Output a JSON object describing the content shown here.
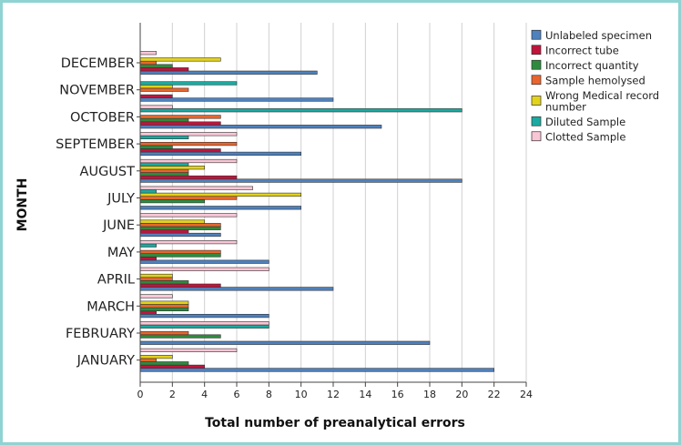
{
  "chart_data": {
    "type": "bar",
    "orientation": "horizontal",
    "title": "",
    "xlabel": "Total number of preanalytical errors",
    "ylabel": "MONTH",
    "xlim": [
      0,
      24
    ],
    "xticks": [
      0,
      2,
      4,
      6,
      8,
      10,
      12,
      14,
      16,
      18,
      20,
      22,
      24
    ],
    "grid": "vertical",
    "legend_position": "top-right",
    "categories": [
      "JANUARY",
      "FEBRUARY",
      "MARCH",
      "APRIL",
      "MAY",
      "JUNE",
      "JULY",
      "AUGUST",
      "SEPTEMBER",
      "OCTOBER",
      "NOVEMBER",
      "DECEMBER"
    ],
    "series": [
      {
        "name": "Unlabeled specimen",
        "color": "#4e81bd",
        "values": [
          22,
          18,
          8,
          12,
          8,
          5,
          10,
          20,
          10,
          15,
          12,
          11
        ]
      },
      {
        "name": "Incorrect tube",
        "color": "#c0143c",
        "values": [
          4,
          0,
          1,
          5,
          1,
          3,
          0,
          6,
          5,
          5,
          2,
          3
        ]
      },
      {
        "name": "Incorrect quantity",
        "color": "#2e8b3e",
        "values": [
          3,
          5,
          3,
          3,
          5,
          5,
          4,
          3,
          2,
          3,
          0,
          2
        ]
      },
      {
        "name": "Sample hemolysed",
        "color": "#e8662e",
        "values": [
          1,
          3,
          3,
          2,
          5,
          5,
          6,
          3,
          6,
          5,
          3,
          1
        ]
      },
      {
        "name": "Wrong Medical record number",
        "color": "#e3d21a",
        "values": [
          2,
          0,
          3,
          2,
          0,
          4,
          10,
          4,
          0,
          0,
          2,
          5
        ]
      },
      {
        "name": "Diluted Sample",
        "color": "#1aaaa0",
        "values": [
          0,
          8,
          0,
          0,
          1,
          0,
          1,
          3,
          3,
          20,
          6,
          0
        ]
      },
      {
        "name": "Clotted Sample",
        "color": "#f9c6d6",
        "values": [
          6,
          8,
          2,
          8,
          6,
          6,
          7,
          6,
          6,
          2,
          0,
          1
        ]
      }
    ]
  }
}
